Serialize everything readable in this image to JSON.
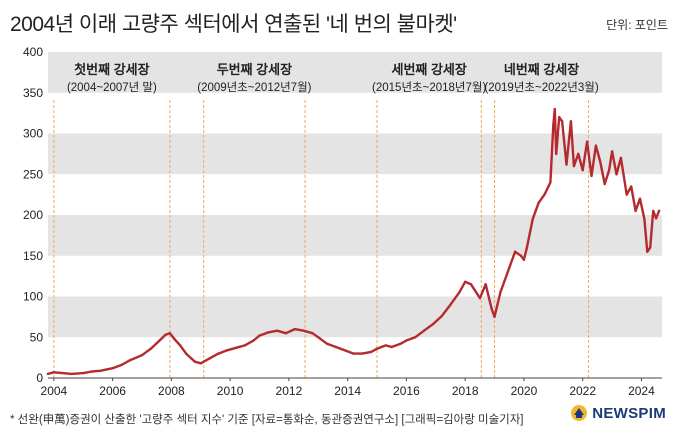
{
  "title": "2004년 이래 고량주 섹터에서 연출된 '네 번의 불마켓'",
  "unit": "단위: 포인트",
  "footer_note": "* 선완(申萬)증권이 산출한 '고량주 섹터 지수' 기준 [자료=통화순, 동관증권연구소] [그래픽=김아랑 미술기자]",
  "logo_text": "NEWSPIM",
  "colors": {
    "line": "#b52a2e",
    "band": "#e4e4e4",
    "marker": "#f2a65a",
    "text": "#222222",
    "logo": "#1a3a7a"
  },
  "chart_data": {
    "type": "line",
    "title": "2004년 이래 고량주 섹터에서 연출된 '네 번의 불마켓'",
    "ylabel": "단위: 포인트",
    "xlim": [
      2003.8,
      2024.7
    ],
    "ylim": [
      0,
      400
    ],
    "yticks": [
      0,
      50,
      100,
      150,
      200,
      250,
      300,
      350,
      400
    ],
    "xticks": [
      "2004",
      "2006",
      "2008",
      "2010",
      "2012",
      "2014",
      "2016",
      "2018",
      "2020",
      "2022",
      "2024"
    ],
    "grid": "horizontal alternating bands",
    "series": [
      {
        "x": [
          2003.8,
          2004.0,
          2004.3,
          2004.6,
          2005.0,
          2005.3,
          2005.6,
          2006.0,
          2006.3,
          2006.6,
          2007.0,
          2007.3,
          2007.6,
          2007.8,
          2007.95,
          2008.1,
          2008.3,
          2008.5,
          2008.8,
          2009.0,
          2009.3,
          2009.6,
          2009.9,
          2010.2,
          2010.5,
          2010.8,
          2011.0,
          2011.3,
          2011.6,
          2011.9,
          2012.2,
          2012.5,
          2012.8,
          2013.0,
          2013.3,
          2013.6,
          2013.9,
          2014.2,
          2014.5,
          2014.8,
          2015.0,
          2015.3,
          2015.5,
          2015.8,
          2016.0,
          2016.3,
          2016.6,
          2016.9,
          2017.2,
          2017.5,
          2017.8,
          2018.0,
          2018.2,
          2018.5,
          2018.7,
          2018.9,
          2019.0,
          2019.2,
          2019.5,
          2019.7,
          2019.9,
          2020.0,
          2020.1,
          2020.3,
          2020.5,
          2020.7,
          2020.9,
          2021.0,
          2021.05,
          2021.1,
          2021.2,
          2021.3,
          2021.45,
          2021.6,
          2021.7,
          2021.85,
          2022.0,
          2022.15,
          2022.3,
          2022.45,
          2022.6,
          2022.75,
          2022.9,
          2023.0,
          2023.15,
          2023.3,
          2023.5,
          2023.65,
          2023.8,
          2023.95,
          2024.1,
          2024.2,
          2024.3,
          2024.4,
          2024.5,
          2024.6
        ],
        "y": [
          5,
          7,
          6,
          5,
          6,
          8,
          9,
          12,
          16,
          22,
          28,
          36,
          46,
          53,
          55,
          48,
          40,
          30,
          20,
          18,
          24,
          30,
          34,
          37,
          40,
          46,
          52,
          56,
          58,
          55,
          60,
          58,
          55,
          50,
          42,
          38,
          34,
          30,
          30,
          32,
          36,
          40,
          38,
          42,
          46,
          50,
          58,
          66,
          76,
          90,
          105,
          118,
          115,
          98,
          115,
          85,
          75,
          105,
          135,
          155,
          150,
          145,
          160,
          195,
          215,
          225,
          240,
          310,
          330,
          275,
          320,
          315,
          262,
          315,
          260,
          275,
          255,
          290,
          248,
          285,
          265,
          238,
          255,
          278,
          250,
          270,
          225,
          235,
          205,
          220,
          195,
          155,
          160,
          205,
          196,
          205
        ]
      }
    ],
    "annotations": [
      {
        "label": "첫번째 강세장",
        "period": "(2004~2007년 말)",
        "start": 2004.0,
        "end": 2007.95
      },
      {
        "label": "두번째 강세장",
        "period": "(2009년초~2012년7월)",
        "start": 2009.1,
        "end": 2012.55
      },
      {
        "label": "세번째 강세장",
        "period": "(2015년초~2018년7월)",
        "start": 2015.0,
        "end": 2018.55
      },
      {
        "label": "네번째 강세장",
        "period": "(2019년초~2022년3월)",
        "start": 2019.0,
        "end": 2022.2
      }
    ]
  }
}
